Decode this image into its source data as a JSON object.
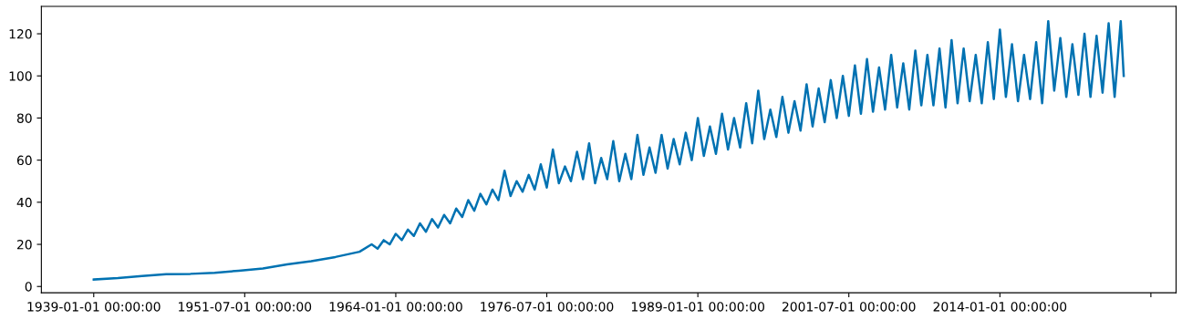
{
  "chart_data": {
    "type": "line",
    "x": [
      "1939-01",
      "1941-01",
      "1943-01",
      "1945-01",
      "1947-01",
      "1949-01",
      "1951-01",
      "1953-01",
      "1955-01",
      "1957-01",
      "1959-01",
      "1961-01",
      "1962-01",
      "1962-07",
      "1963-01",
      "1963-07",
      "1964-01",
      "1964-07",
      "1965-01",
      "1965-07",
      "1966-01",
      "1966-07",
      "1967-01",
      "1967-07",
      "1968-01",
      "1968-07",
      "1969-01",
      "1969-07",
      "1970-01",
      "1970-07",
      "1971-01",
      "1971-07",
      "1972-01",
      "1972-07",
      "1973-01",
      "1973-07",
      "1974-01",
      "1974-07",
      "1975-01",
      "1975-07",
      "1976-01",
      "1976-07",
      "1977-01",
      "1977-07",
      "1978-01",
      "1978-07",
      "1979-01",
      "1979-07",
      "1980-01",
      "1980-07",
      "1981-01",
      "1981-07",
      "1982-01",
      "1982-07",
      "1983-01",
      "1983-07",
      "1984-01",
      "1984-07",
      "1985-01",
      "1985-07",
      "1986-01",
      "1986-07",
      "1987-01",
      "1987-07",
      "1988-01",
      "1988-07",
      "1989-01",
      "1989-07",
      "1990-01",
      "1990-07",
      "1991-01",
      "1991-07",
      "1992-01",
      "1992-07",
      "1993-01",
      "1993-07",
      "1994-01",
      "1994-07",
      "1995-01",
      "1995-07",
      "1996-01",
      "1996-07",
      "1997-01",
      "1997-07",
      "1998-01",
      "1998-07",
      "1999-01",
      "1999-07",
      "2000-01",
      "2000-07",
      "2001-01",
      "2001-07",
      "2002-01",
      "2002-07",
      "2003-01",
      "2003-07",
      "2004-01",
      "2004-07",
      "2005-01",
      "2005-07",
      "2006-01",
      "2006-07",
      "2007-01",
      "2007-07",
      "2008-01",
      "2008-07",
      "2009-01",
      "2009-07",
      "2010-01",
      "2010-07",
      "2011-01",
      "2011-07",
      "2012-01",
      "2012-07",
      "2013-01",
      "2013-07",
      "2014-01",
      "2014-07",
      "2015-01",
      "2015-07",
      "2016-01",
      "2016-07",
      "2017-01",
      "2017-07",
      "2018-01",
      "2018-07",
      "2019-01",
      "2019-07",
      "2020-01",
      "2020-07",
      "2021-01",
      "2021-07",
      "2022-01",
      "2022-07",
      "2023-01",
      "2023-07",
      "2024-01",
      "2024-04"
    ],
    "series": [
      {
        "color": "#0072b2",
        "values": [
          3.3,
          4,
          5,
          5.8,
          6,
          6.5,
          7.5,
          8.5,
          10.5,
          12,
          14,
          16.5,
          20,
          18,
          22,
          20,
          25,
          22,
          27,
          24,
          30,
          26,
          32,
          28,
          34,
          30,
          37,
          33,
          41,
          36,
          44,
          39,
          46,
          41,
          55,
          43,
          50,
          45,
          53,
          46,
          58,
          47,
          65,
          49,
          57,
          50,
          64,
          51,
          68,
          49,
          61,
          51,
          69,
          50,
          63,
          51,
          72,
          53,
          66,
          54,
          72,
          56,
          70,
          58,
          73,
          60,
          80,
          62,
          76,
          63,
          82,
          65,
          80,
          66,
          87,
          68,
          93,
          70,
          84,
          71,
          90,
          73,
          88,
          74,
          96,
          76,
          94,
          78,
          98,
          80,
          100,
          81,
          105,
          82,
          108,
          83,
          104,
          84,
          110,
          85,
          106,
          84,
          112,
          86,
          110,
          86,
          113,
          85,
          117,
          87,
          113,
          88,
          110,
          87,
          116,
          89,
          122,
          90,
          115,
          88,
          110,
          89,
          116,
          87,
          126,
          93,
          118,
          90,
          115,
          91,
          120,
          90,
          119,
          92,
          125,
          90,
          126,
          100
        ]
      }
    ],
    "xlim": [
      "1934-09-01",
      "2028-08-01"
    ],
    "xticks": [
      {
        "value": "1939-01-01",
        "label": "1939-01-01 00:00:00"
      },
      {
        "value": "1951-07-01",
        "label": "1951-07-01 00:00:00"
      },
      {
        "value": "1964-01-01",
        "label": "1964-01-01 00:00:00"
      },
      {
        "value": "1976-07-01",
        "label": "1976-07-01 00:00:00"
      },
      {
        "value": "1989-01-01",
        "label": "1989-01-01 00:00:00"
      },
      {
        "value": "2001-07-01",
        "label": "2001-07-01 00:00:00"
      },
      {
        "value": "2014-01-01",
        "label": "2014-01-01 00:00:00"
      },
      {
        "value": "2026-07-01",
        "label": null
      }
    ],
    "ylim": [
      -3,
      133
    ],
    "yticks": [
      0,
      20,
      40,
      60,
      80,
      100,
      120
    ],
    "grid": false,
    "legend": false
  }
}
